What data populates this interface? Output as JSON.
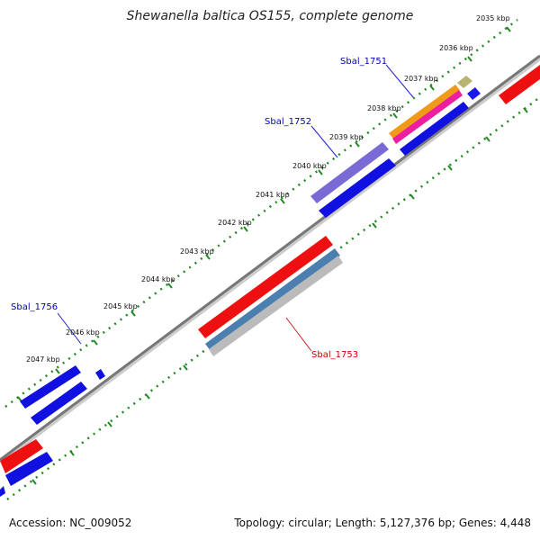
{
  "title": "Shewanella baltica OS155, complete genome",
  "footer": {
    "accession": "Accession: NC_009052",
    "topology": "Topology: circular; Length: 5,127,376 bp; Genes: 4,448"
  },
  "colors": {
    "backbone": "#777777",
    "ticks": "#228822",
    "forward_gene": "#0000ee",
    "reverse_gene": "#ee0000",
    "label_blue": "#0000bb",
    "label_red": "#cc0000"
  },
  "scale_labels": [
    "2035 kbp",
    "2036 kbp",
    "2037 kbp",
    "2038 kbp",
    "2039 kbp",
    "2040 kbp",
    "2041 kbp",
    "2042 kbp",
    "2043 kbp",
    "2044 kbp",
    "2045 kbp",
    "2046 kbp",
    "2047 kbp"
  ],
  "gene_labels": [
    {
      "text": "Sbal_1751",
      "color": "#0000bb"
    },
    {
      "text": "Sbal_1752",
      "color": "#0000bb"
    },
    {
      "text": "Sbal_1756",
      "color": "#0000bb"
    },
    {
      "text": "Sbal_1753",
      "color": "#cc0000"
    }
  ]
}
